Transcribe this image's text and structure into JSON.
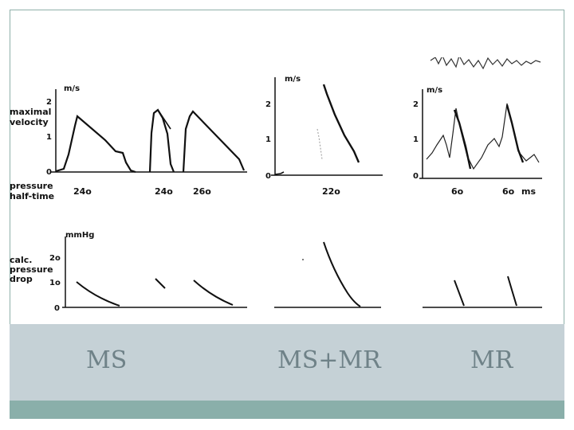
{
  "figure": {
    "row_labels": {
      "velocity": [
        "maximal",
        "velocity"
      ],
      "halftime": [
        "pressure",
        "half-time"
      ],
      "drop": [
        "calc.",
        "pressure",
        "drop"
      ]
    },
    "units": {
      "velocity": "m/s",
      "pressure": "mmHg",
      "time": "ms"
    },
    "velocity_ticks": [
      "2",
      "1",
      "0"
    ],
    "pressure_ticks": [
      "2o",
      "1o",
      "0"
    ],
    "halftimes": {
      "ms": [
        "24o",
        "24o",
        "26o"
      ],
      "msmr": [
        "22o"
      ],
      "mr": [
        "6o",
        "6o"
      ]
    }
  },
  "captions": {
    "ms": "MS",
    "msmr": "MS+MR",
    "mr": "MR"
  }
}
